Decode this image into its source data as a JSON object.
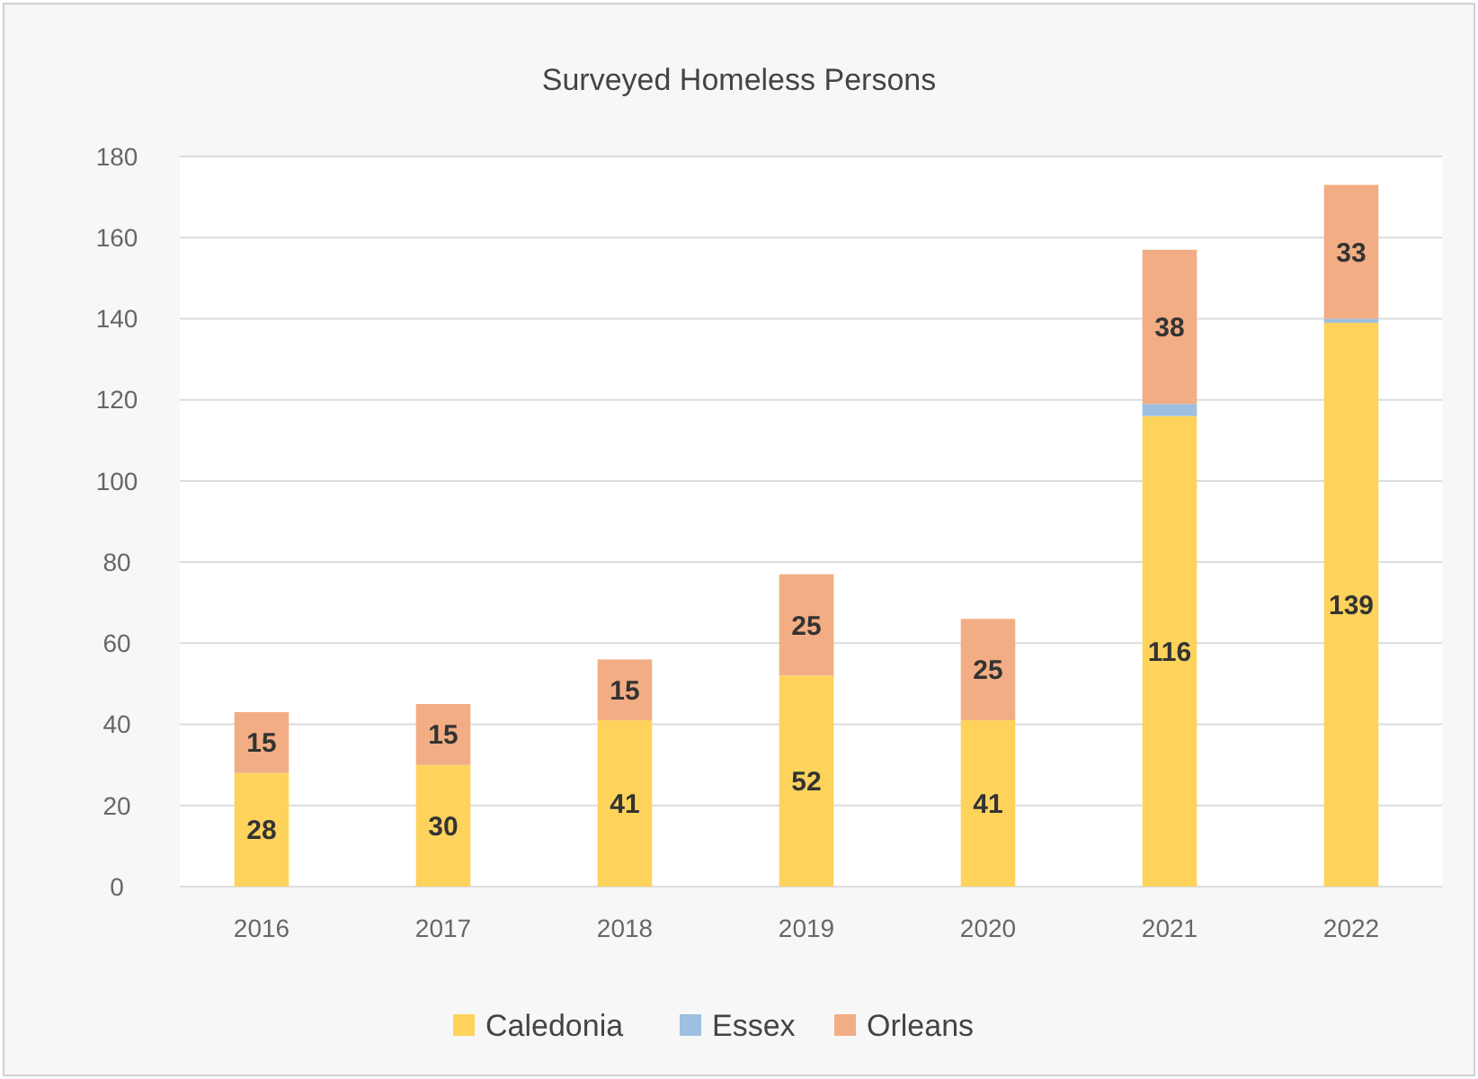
{
  "chart_data": {
    "type": "bar",
    "title": "Surveyed Homeless Persons",
    "categories": [
      "2016",
      "2017",
      "2018",
      "2019",
      "2020",
      "2021",
      "2022"
    ],
    "stacked": true,
    "ylim": [
      0,
      180
    ],
    "yticks": [
      0,
      20,
      40,
      60,
      80,
      100,
      120,
      140,
      160,
      180
    ],
    "grid": "y",
    "legend": "bottom",
    "series": [
      {
        "name": "Caledonia",
        "color": "#fdd35c",
        "values": [
          28,
          30,
          41,
          52,
          41,
          116,
          139
        ],
        "value_labels": [
          "28",
          "30",
          "41",
          "52",
          "41",
          "116",
          "139"
        ]
      },
      {
        "name": "Essex",
        "color": "#9dbfe0",
        "values": [
          0,
          0,
          0,
          0,
          0,
          3,
          1
        ],
        "value_labels": [
          null,
          null,
          null,
          null,
          null,
          null,
          null
        ]
      },
      {
        "name": "Orleans",
        "color": "#f2ad84",
        "values": [
          15,
          15,
          15,
          25,
          25,
          38,
          33
        ],
        "value_labels": [
          "15",
          "15",
          "15",
          "25",
          "25",
          "38",
          "33"
        ]
      }
    ]
  }
}
